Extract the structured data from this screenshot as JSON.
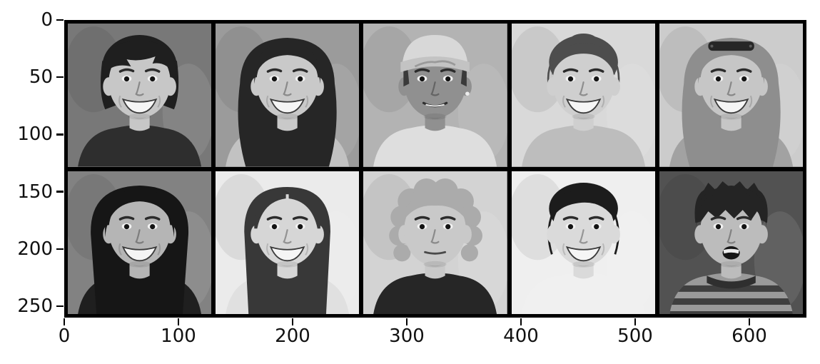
{
  "figure": {
    "description": "Matplotlib-style figure showing a montage of 10 grayscale face portraits arranged in 2 rows by 5 columns, with pixel-coordinate axes",
    "background": "#ffffff",
    "frame_color": "#000000",
    "tick_color": "#000000"
  },
  "chart_data": {
    "type": "heatmap",
    "subtype": "image-grid",
    "title": "",
    "xlabel": "",
    "ylabel": "",
    "x_ticks": [
      0,
      100,
      200,
      300,
      400,
      500,
      600
    ],
    "y_ticks": [
      0,
      50,
      100,
      150,
      200,
      250
    ],
    "xlim": [
      0,
      650
    ],
    "ylim": [
      260,
      0
    ],
    "grid": false,
    "rows": 2,
    "cols": 5,
    "cell_data_size": 130,
    "content": "10 grayscale human face photographs concatenated into one image with black borders between cells"
  },
  "axes": {
    "x_tick_labels": [
      "0",
      "100",
      "200",
      "300",
      "400",
      "500",
      "600"
    ],
    "y_tick_labels": [
      "0",
      "50",
      "100",
      "150",
      "200",
      "250"
    ]
  },
  "faces": [
    {
      "id": "face-1",
      "desc": "smiling child with dark bowl-cut hair and straight bangs, dark jacket, blurred mid-gray background",
      "style": "bangs",
      "hair": "#1f1f1f",
      "skin": "#c7c7c7",
      "bg": "#787878",
      "shirt": "#2e2e2e",
      "expr": "big-smile",
      "extras": []
    },
    {
      "id": "face-2",
      "desc": "young woman with long dark wavy hair, smiling with teeth, blurred gray background",
      "style": "longwavy",
      "hair": "#262626",
      "skin": "#c9c9c9",
      "bg": "#9b9b9b",
      "shirt": "#c2c2c2",
      "expr": "big-smile",
      "extras": []
    },
    {
      "id": "face-3",
      "desc": "man with darker skin wearing a light bandana cap with lettering, white shirt, soft smile",
      "style": "cap",
      "hair": "#3a3a3a",
      "skin": "#909090",
      "bg": "#b3b3b3",
      "shirt": "#dedede",
      "expr": "soft-smile",
      "extras": [
        "earring"
      ],
      "cap": "#d8d8d8",
      "cap_band": "#c3c3c3"
    },
    {
      "id": "face-4",
      "desc": "smiling woman with hair pulled back in a bun, loose wisps, light background",
      "style": "pulledback",
      "hair": "#4d4d4d",
      "skin": "#cfcfcf",
      "bg": "#d9d9d9",
      "shirt": "#bdbdbd",
      "expr": "big-smile",
      "extras": []
    },
    {
      "id": "face-5",
      "desc": "smiling woman with long wavy hair and sunglasses pushed up on her head, light textured background",
      "style": "longwavy",
      "hair": "#8e8e8e",
      "skin": "#c6c6c6",
      "bg": "#cccccc",
      "shirt": "#a2a2a2",
      "expr": "big-smile",
      "extras": [
        "sunglasses"
      ]
    },
    {
      "id": "face-6",
      "desc": "woman with very long straight dark hair, head slightly tilted, smiling, stone background",
      "style": "longstraight",
      "hair": "#161616",
      "skin": "#b5b5b5",
      "bg": "#828282",
      "shirt": "#1f1f1f",
      "expr": "big-smile",
      "extras": []
    },
    {
      "id": "face-7",
      "desc": "smiling girl with long dark hair parted at the side, very light background",
      "style": "longparted",
      "hair": "#383838",
      "skin": "#d6d6d6",
      "bg": "#ebebeb",
      "shirt": "#e0e0e0",
      "expr": "big-smile",
      "extras": []
    },
    {
      "id": "face-8",
      "desc": "woman with short curly light hair, calm neutral expression, dark top",
      "style": "curly",
      "hair": "#ababab",
      "skin": "#c9c9c9",
      "bg": "#d3d3d3",
      "shirt": "#262626",
      "expr": "neutral",
      "extras": []
    },
    {
      "id": "face-9",
      "desc": "smiling Asian woman with dark hair swept back and loose strands, near-white background",
      "style": "updo",
      "hair": "#1c1c1c",
      "skin": "#dadada",
      "bg": "#efefef",
      "shirt": "#f0f0f0",
      "expr": "big-smile",
      "extras": []
    },
    {
      "id": "face-10",
      "desc": "young boy with shaggy dark hair and mouth open, striped collar shirt, dark background",
      "style": "shaggy",
      "hair": "#242424",
      "skin": "#bcbcbc",
      "bg": "#525252",
      "shirt": "#9a9a9a",
      "expr": "open-mouth",
      "extras": [
        "stripes"
      ]
    }
  ]
}
